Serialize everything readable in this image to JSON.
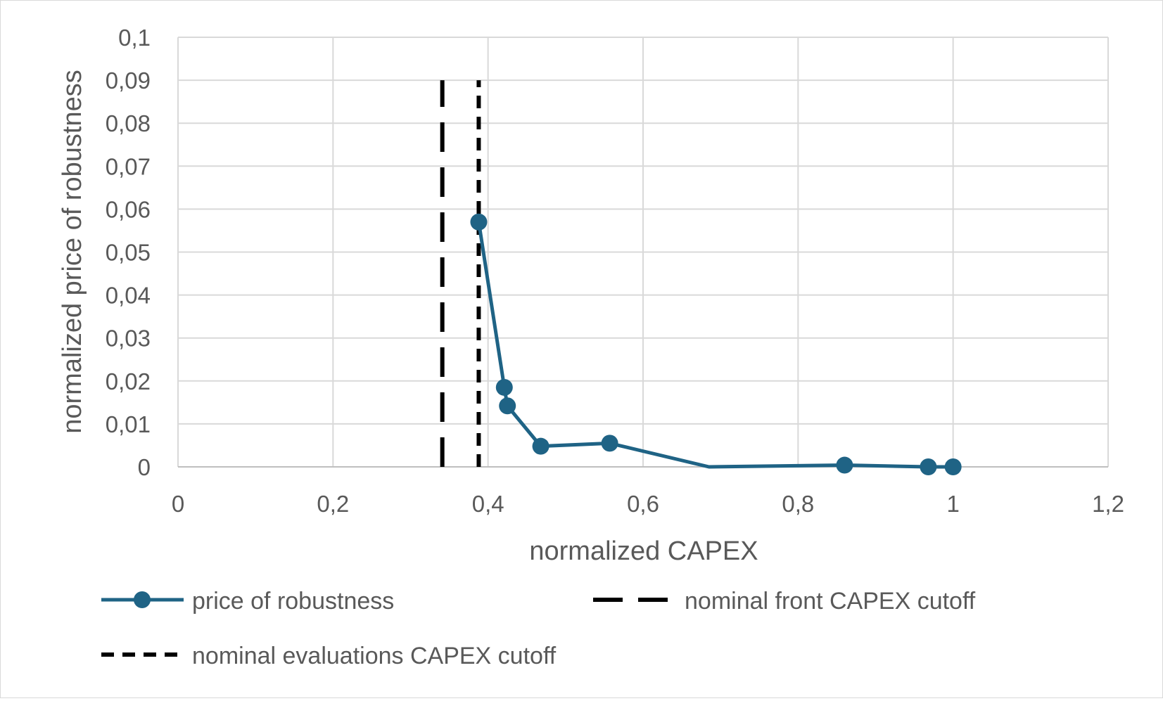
{
  "chart_data": {
    "type": "scatter",
    "title": "",
    "xlabel": "normalized CAPEX",
    "ylabel": "normalized price of robustness",
    "xlim": [
      0,
      1.2
    ],
    "ylim": [
      0,
      0.1
    ],
    "x_ticks": [
      0,
      0.2,
      0.4,
      0.6,
      0.8,
      1,
      1.2
    ],
    "y_ticks": [
      0,
      0.01,
      0.02,
      0.03,
      0.04,
      0.05,
      0.06,
      0.07,
      0.08,
      0.09,
      0.1
    ],
    "x_tick_labels": [
      "0",
      "0,2",
      "0,4",
      "0,6",
      "0,8",
      "1",
      "1,2"
    ],
    "y_tick_labels": [
      "0",
      "0,01",
      "0,02",
      "0,03",
      "0,04",
      "0,05",
      "0,06",
      "0,07",
      "0,08",
      "0,09",
      "0,1"
    ],
    "grid": true,
    "legend_position": "bottom",
    "series": [
      {
        "name": "price of robustness",
        "kind": "line-markers",
        "color": "#1f6385",
        "x": [
          0.388,
          0.421,
          0.425,
          0.468,
          0.557,
          0.685,
          0.86,
          0.968,
          1.0
        ],
        "y": [
          0.057,
          0.0185,
          0.0142,
          0.0048,
          0.0055,
          0.0,
          0.0004,
          0.0,
          0.0
        ],
        "markers": [
          true,
          true,
          true,
          true,
          true,
          false,
          true,
          true,
          true
        ]
      },
      {
        "name": "nominal front CAPEX cutoff",
        "kind": "vline-dashed",
        "color": "#000000",
        "x": [
          0.341,
          0.341
        ],
        "y": [
          0,
          0.09
        ]
      },
      {
        "name": "nominal evaluations CAPEX cutoff",
        "kind": "vline-dotted",
        "color": "#000000",
        "x": [
          0.388,
          0.388
        ],
        "y": [
          0,
          0.09
        ]
      }
    ]
  },
  "legend": {
    "price_label": "price of robustness",
    "front_label": "nominal front CAPEX cutoff",
    "eval_label": "nominal evaluations CAPEX cutoff"
  }
}
